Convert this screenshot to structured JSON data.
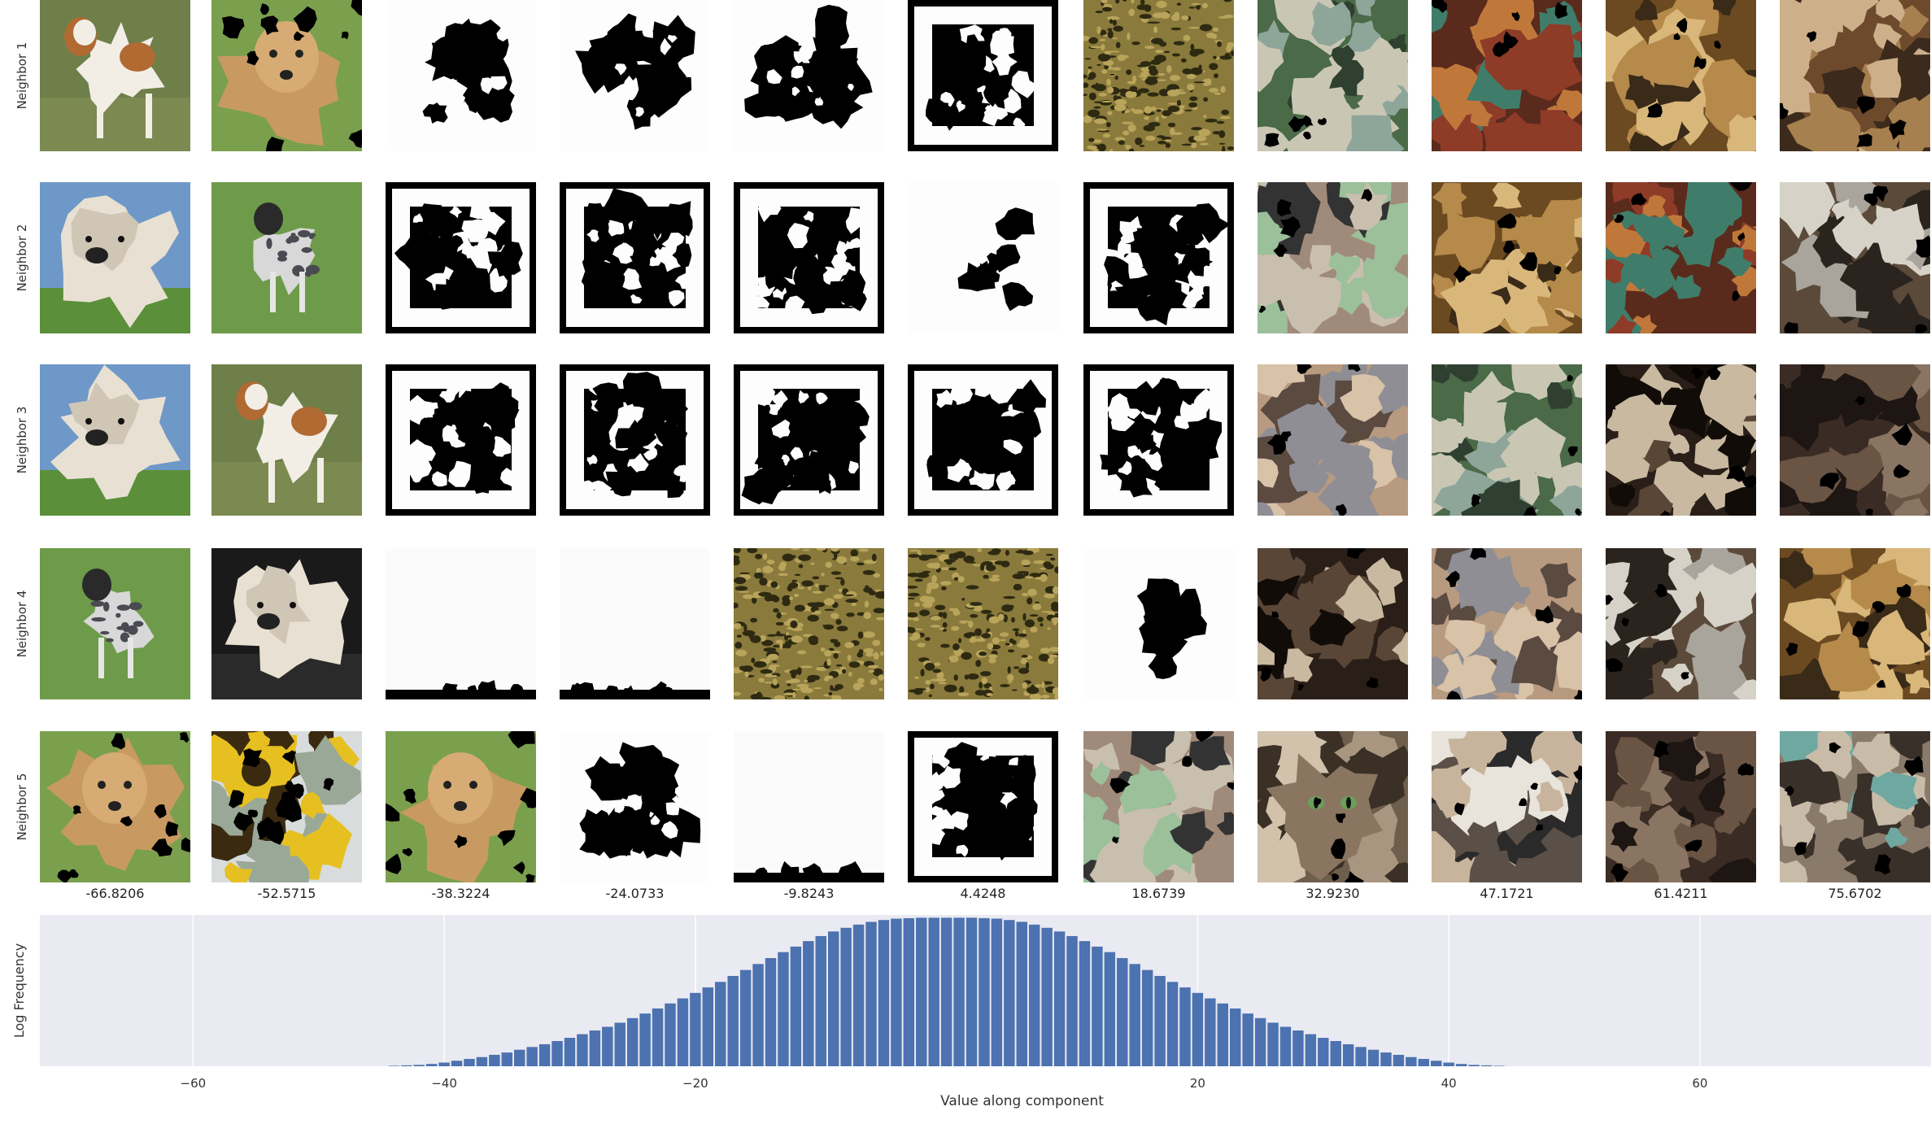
{
  "chart_data": {
    "type": "bar",
    "row_labels": [
      "Neighbor 1",
      "Neighbor 2",
      "Neighbor 3",
      "Neighbor 4",
      "Neighbor 5"
    ],
    "column_values": [
      "-66.8206",
      "-52.5715",
      "-38.3224",
      "-24.0733",
      "-9.8243",
      "4.4248",
      "18.6739",
      "32.9230",
      "47.1721",
      "61.4211",
      "75.6702"
    ],
    "tiles": [
      [
        "dog-spaniel",
        "dog-golden-masked",
        "mask-blob",
        "mask-blob",
        "mask-blob",
        "mask-frame",
        "texture-olive",
        "photo-child",
        "photo-market",
        "photo-jars",
        "photo-boy"
      ],
      [
        "dog-shaggy",
        "dog-merle",
        "mask-frame",
        "mask-frame",
        "mask-frame",
        "mask-sparse",
        "mask-frame",
        "photo-man-green",
        "photo-jars",
        "photo-market",
        "photo-workshop"
      ],
      [
        "dog-shaggy",
        "dog-spaniel",
        "mask-frame",
        "mask-frame",
        "mask-frame",
        "mask-frame",
        "mask-frame",
        "photo-man-grey",
        "photo-child",
        "photo-dark-room",
        "photo-dark-machine"
      ],
      [
        "dog-merle",
        "dog-shaggy-dark",
        "mask-white",
        "mask-white",
        "texture-olive",
        "texture-olive",
        "mask-blob-small",
        "photo-dark-room",
        "photo-man-grey",
        "photo-workshop",
        "photo-jars"
      ],
      [
        "dog-golden-masked",
        "photo-sunflower",
        "dog-golden-masked",
        "mask-blob",
        "mask-white",
        "mask-frame",
        "photo-man-green",
        "photo-cat",
        "photo-man-portrait",
        "photo-dark-machine",
        "photo-woman-work"
      ]
    ],
    "hist_x": [
      -44,
      -43,
      -42,
      -41,
      -40,
      -39,
      -38,
      -37,
      -36,
      -35,
      -34,
      -33,
      -32,
      -31,
      -30,
      -29,
      -28,
      -27,
      -26,
      -25,
      -24,
      -23,
      -22,
      -21,
      -20,
      -19,
      -18,
      -17,
      -16,
      -15,
      -14,
      -13,
      -12,
      -11,
      -10,
      -9,
      -8,
      -7,
      -6,
      -5,
      -4,
      -3,
      -2,
      -1,
      0,
      1,
      2,
      3,
      4,
      5,
      6,
      7,
      8,
      9,
      10,
      11,
      12,
      13,
      14,
      15,
      16,
      17,
      18,
      19,
      20,
      21,
      22,
      23,
      24,
      25,
      26,
      27,
      28,
      29,
      30,
      31,
      32,
      33,
      34,
      35,
      36,
      37,
      38,
      39,
      40,
      41,
      42,
      43,
      44
    ],
    "hist_y": [
      0.1,
      0.2,
      0.3,
      0.5,
      0.8,
      1.2,
      1.6,
      2,
      2.5,
      3,
      3.6,
      4.2,
      4.8,
      5.5,
      6.2,
      7,
      7.8,
      8.6,
      9.5,
      10.5,
      11.5,
      12.6,
      13.7,
      14.8,
      16,
      17.2,
      18.4,
      19.7,
      21,
      22.3,
      23.6,
      24.9,
      26.1,
      27.3,
      28.4,
      29.4,
      30.2,
      30.9,
      31.5,
      31.9,
      32.2,
      32.3,
      32.4,
      32.4,
      32.4,
      32.4,
      32.4,
      32.3,
      32.2,
      31.9,
      31.5,
      30.9,
      30.2,
      29.4,
      28.4,
      27.3,
      26.1,
      24.9,
      23.6,
      22.3,
      21,
      19.7,
      18.4,
      17.2,
      16,
      14.8,
      13.7,
      12.6,
      11.5,
      10.5,
      9.5,
      8.6,
      7.8,
      7,
      6.2,
      5.5,
      4.8,
      4.2,
      3.6,
      3,
      2.5,
      2,
      1.6,
      1.2,
      0.8,
      0.5,
      0.3,
      0.2,
      0.1
    ],
    "xlabel": "Value along component",
    "ylabel": "Log Frequency",
    "xticks": [
      -60,
      -40,
      -20,
      20,
      40,
      60
    ],
    "xtick_labels": [
      "−60",
      "−40",
      "−20",
      "20",
      "40",
      "60"
    ],
    "xlim": [
      -72.2,
      78.4
    ],
    "ylim": [
      0,
      33
    ],
    "grid": true,
    "colors": {
      "bars": "#4c72b0",
      "axes_bg": "#eaeaf2",
      "grid": "#ffffff"
    }
  }
}
